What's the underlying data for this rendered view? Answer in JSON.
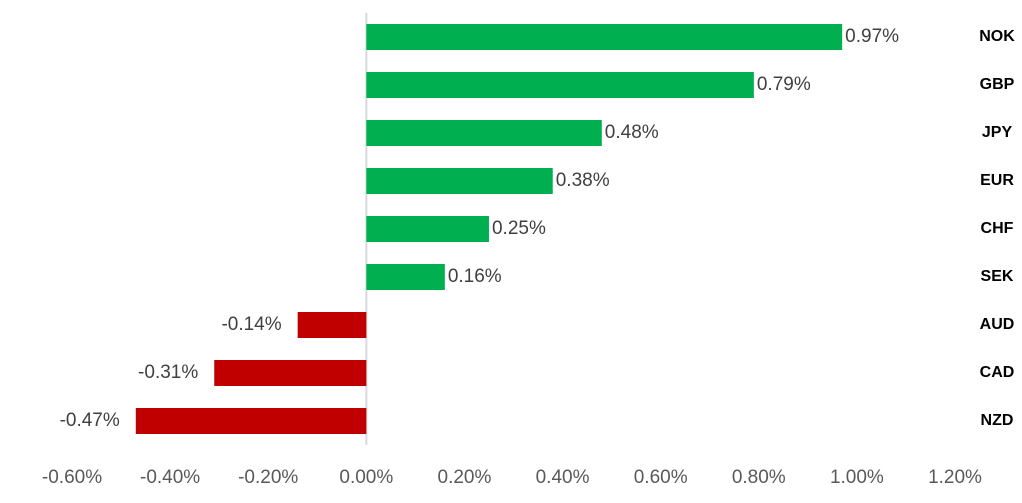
{
  "chart_data": {
    "type": "bar",
    "orientation": "horizontal",
    "categories": [
      "NOK",
      "GBP",
      "JPY",
      "EUR",
      "CHF",
      "SEK",
      "AUD",
      "CAD",
      "NZD"
    ],
    "values": [
      0.97,
      0.79,
      0.48,
      0.38,
      0.25,
      0.16,
      -0.14,
      -0.31,
      -0.47
    ],
    "value_labels": [
      "0.97%",
      "0.79%",
      "0.48%",
      "0.38%",
      "0.25%",
      "0.16%",
      "-0.14%",
      "-0.31%",
      "-0.47%"
    ],
    "colors": [
      "#00b050",
      "#00b050",
      "#00b050",
      "#00b050",
      "#00b050",
      "#00b050",
      "#c00000",
      "#c00000",
      "#c00000"
    ],
    "xlim": [
      -0.6,
      1.2
    ],
    "xticks": [
      {
        "value": -0.6,
        "label": "-0.60%"
      },
      {
        "value": -0.4,
        "label": "-0.40%"
      },
      {
        "value": -0.2,
        "label": "-0.20%"
      },
      {
        "value": 0,
        "label": "0.00%"
      },
      {
        "value": 0.2,
        "label": "0.20%"
      },
      {
        "value": 0.4,
        "label": "0.40%"
      },
      {
        "value": 0.6,
        "label": "0.60%"
      },
      {
        "value": 0.8,
        "label": "0.80%"
      },
      {
        "value": 1.0,
        "label": "1.00%"
      },
      {
        "value": 1.2,
        "label": "1.20%"
      }
    ],
    "grid": false
  }
}
